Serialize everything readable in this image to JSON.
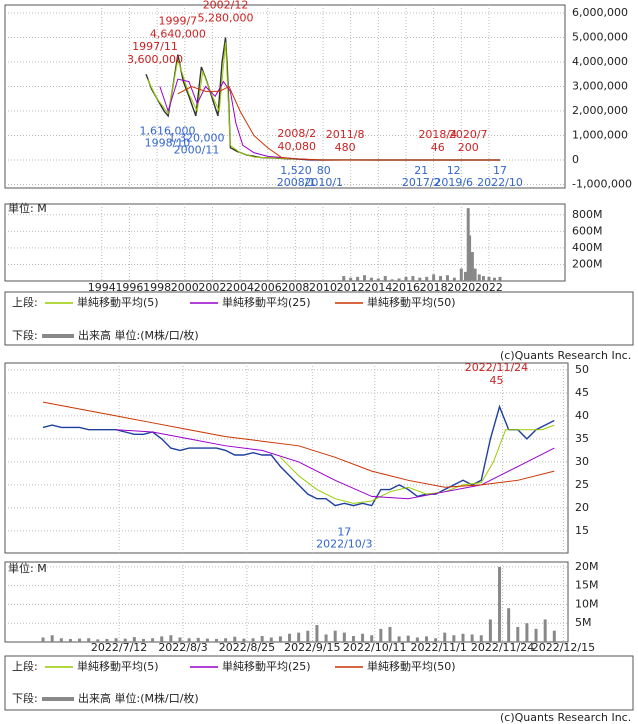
{
  "chart_data": [
    {
      "type": "line",
      "legend_upper": "上段:",
      "xlim": [
        1987,
        2027.5
      ],
      "ylim": [
        -1143000,
        6327000
      ],
      "yticks": [
        {
          "value": 6000000,
          "label": "6,000,000"
        },
        {
          "value": 5000000,
          "label": "5,000,000"
        },
        {
          "value": 4000000,
          "label": "4,000,000"
        },
        {
          "value": 3000000,
          "label": "3,000,000"
        },
        {
          "value": 2000000,
          "label": "2,000,000"
        },
        {
          "value": 1000000,
          "label": "1,000,000"
        },
        0,
        {
          "value": -1000000,
          "label": "-1,000,000"
        }
      ],
      "grid": true,
      "series": [
        {
          "color": "#333333",
          "x": [
            1997.2,
            1997.6,
            1998.0,
            1998.5,
            1998.8,
            1999.2,
            1999.5,
            1999.9,
            2000.3,
            2000.8,
            2001.2,
            2001.6,
            2002.0,
            2002.4,
            2002.7,
            2002.95,
            2003.1,
            2003.3,
            2003.8,
            2004.5,
            2005.5,
            2006.5,
            2007.5,
            2008.2,
            2009.0,
            2010.0,
            2011.6,
            2014.0,
            2018.3,
            2020.6,
            2022.8
          ],
          "values": [
            3500000,
            2900000,
            2500000,
            2000000,
            1800000,
            3200000,
            4300000,
            3200000,
            2600000,
            1800000,
            3800000,
            3200000,
            2500000,
            1800000,
            4000000,
            5000000,
            3500000,
            500000,
            350000,
            200000,
            100000,
            80000,
            50000,
            40000,
            5000,
            200,
            480,
            100,
            46,
            200,
            17
          ]
        },
        {
          "name": "単純移動平均(5)",
          "color": "#99cc00",
          "x": [
            1997.3,
            1998.0,
            1998.8,
            1999.5,
            2000.3,
            2000.9,
            2001.3,
            2002.0,
            2002.5,
            2002.95,
            2003.3,
            2004.0,
            2005.0,
            2006.5,
            2008.0
          ],
          "values": [
            3300000,
            2500000,
            1900000,
            4100000,
            2700000,
            2000000,
            3600000,
            2600000,
            2000000,
            4800000,
            600000,
            300000,
            120000,
            80000,
            40000
          ]
        },
        {
          "name": "単純移動平均(25)",
          "color": "#9900cc",
          "x": [
            1998.2,
            1998.8,
            1999.5,
            2000.3,
            2000.9,
            2001.5,
            2002.2,
            2002.8,
            2003.3,
            2003.7,
            2004.2,
            2005.0,
            2006.0,
            2007.0,
            2008.0,
            2009.5
          ],
          "values": [
            3000000,
            2000000,
            3300000,
            3200000,
            2300000,
            3000000,
            2600000,
            3200000,
            2800000,
            1500000,
            600000,
            300000,
            150000,
            100000,
            50000,
            0
          ]
        },
        {
          "name": "単純移動平均(50)",
          "color": "#cc3300",
          "x": [
            1999.5,
            2000.5,
            2001.5,
            2002.5,
            2003.2,
            2004.0,
            2005.0,
            2006.0,
            2007.0,
            2008.0,
            2010.0,
            2022.8
          ],
          "values": [
            2700000,
            3000000,
            2800000,
            2800000,
            3000000,
            2000000,
            1000000,
            500000,
            100000,
            50000,
            1000,
            20
          ]
        }
      ],
      "annotation_colors": {
        "high": "#cc2222",
        "low": "#3366cc"
      },
      "annotations": [
        {
          "kind": "high",
          "date": "1997/11",
          "x": 1997.85,
          "value": 3600000,
          "value_label": "3,600,000"
        },
        {
          "kind": "high",
          "date": "1999/7",
          "x": 1999.5,
          "value": 4640000,
          "value_label": "4,640,000"
        },
        {
          "kind": "high",
          "date": "2002/12",
          "x": 2002.95,
          "value": 5280000,
          "value_label": "5,280,000"
        },
        {
          "kind": "low",
          "date": "1998/10",
          "x": 1998.75,
          "value": 1616000,
          "value_label": "1,616,000"
        },
        {
          "kind": "low",
          "date": "2000/11",
          "x": 2000.85,
          "value": 1320000,
          "value_label": "1,320,000"
        },
        {
          "kind": "high",
          "date": "2008/2",
          "x": 2008.1,
          "value": 40080,
          "value_label": "40,080"
        },
        {
          "kind": "low",
          "date": "2008/1",
          "x": 2008.05,
          "value": 1520,
          "value_label": "1,520"
        },
        {
          "kind": "low",
          "date": "2010/1",
          "x": 2010.05,
          "value": 80
        },
        {
          "kind": "high",
          "date": "2011/8",
          "x": 2011.6,
          "value": 480
        },
        {
          "kind": "low",
          "date": "2017/2",
          "x": 2017.1,
          "value": 21
        },
        {
          "kind": "high",
          "date": "2018/4",
          "x": 2018.3,
          "value": 46
        },
        {
          "kind": "low",
          "date": "2019/6",
          "x": 2019.45,
          "value": 12
        },
        {
          "kind": "high",
          "date": "2020/7",
          "x": 2020.5,
          "value": 200
        },
        {
          "kind": "low",
          "date": "2022/10",
          "x": 2022.8,
          "value": 17
        }
      ]
    },
    {
      "type": "bar",
      "unit_label": "単位: M",
      "legend_lower": "下段:",
      "legend_label": "出来高 単位:(M株/口/枚)",
      "note": "(c)Quants Research Inc.",
      "color": "#888888",
      "xlim": [
        1987,
        2027.5
      ],
      "xticks": [
        1994,
        1996,
        1998,
        2000,
        2002,
        2004,
        2006,
        2008,
        2010,
        2012,
        2014,
        2016,
        2018,
        2020,
        2022
      ],
      "ylim": [
        0,
        930
      ],
      "yticks": [
        {
          "value": 800,
          "label": "800M"
        },
        {
          "value": 600,
          "label": "600M"
        },
        {
          "value": 400,
          "label": "400M"
        },
        {
          "value": 200,
          "label": "200M"
        }
      ],
      "grid": true,
      "x": [
        2011.5,
        2012,
        2012.5,
        2013,
        2013.5,
        2014,
        2014.5,
        2015,
        2015.5,
        2016,
        2016.5,
        2017,
        2017.5,
        2018,
        2018.5,
        2019,
        2019.5,
        2020,
        2020.3,
        2020.5,
        2020.6,
        2020.8,
        2021,
        2021.3,
        2021.6,
        2022,
        2022.4,
        2022.8
      ],
      "values": [
        60,
        40,
        50,
        70,
        40,
        30,
        60,
        20,
        30,
        50,
        60,
        40,
        50,
        80,
        60,
        70,
        40,
        150,
        110,
        880,
        550,
        350,
        150,
        80,
        60,
        50,
        40,
        50
      ]
    },
    {
      "type": "line",
      "legend_upper": "上段:",
      "xlim": [
        -12.5,
        172.5
      ],
      "ylim": [
        10.2,
        51.5
      ],
      "yticks": [
        50,
        45,
        40,
        35,
        30,
        25,
        20,
        15
      ],
      "grid": true,
      "series": [
        {
          "color": "#1f3f9f",
          "x": [
            0,
            3,
            6,
            9,
            12,
            15,
            18,
            21,
            24,
            27,
            30,
            33,
            36,
            39,
            42,
            45,
            48,
            51,
            54,
            57,
            60,
            63,
            66,
            69,
            72,
            75,
            78,
            81,
            84,
            87,
            90,
            93,
            96,
            99,
            102,
            105,
            108,
            111,
            114,
            117,
            120,
            123,
            126,
            129,
            132,
            135,
            138,
            141,
            144,
            147,
            150,
            153,
            156,
            159,
            162,
            165,
            168
          ],
          "values": [
            37.5,
            38,
            37.5,
            37.5,
            37.5,
            37,
            37,
            37,
            37,
            36.5,
            36,
            36,
            36.5,
            35,
            33,
            32.5,
            33,
            33,
            33,
            33,
            32.5,
            31.5,
            31.5,
            32,
            31.5,
            31.5,
            29,
            27,
            25,
            23,
            22,
            22,
            20.5,
            21,
            20.5,
            21,
            20.5,
            24,
            24,
            25,
            24,
            22.5,
            23,
            23,
            24,
            25,
            26,
            25,
            26,
            35,
            42,
            37,
            37,
            35,
            37,
            38,
            39
          ]
        },
        {
          "name": "単純移動平均(5)",
          "color": "#99cc00",
          "x": [
            78,
            84,
            90,
            96,
            102,
            108,
            114,
            120,
            126,
            132,
            138,
            144,
            148,
            152,
            158,
            164,
            168
          ],
          "values": [
            31,
            27,
            24,
            22,
            21,
            21.5,
            23.5,
            24.5,
            23,
            23.5,
            25,
            25.5,
            30,
            37,
            37,
            37,
            38
          ]
        },
        {
          "name": "単純移動平均(25)",
          "color": "#9900cc",
          "x": [
            24,
            36,
            48,
            60,
            72,
            84,
            96,
            108,
            120,
            132,
            144,
            156,
            168
          ],
          "values": [
            37,
            36.5,
            35,
            33.5,
            32.5,
            30,
            26,
            22.5,
            22,
            23.5,
            25,
            29,
            33
          ]
        },
        {
          "name": "単純移動平均(50)",
          "color": "#cc3300",
          "x": [
            0,
            12,
            24,
            36,
            48,
            60,
            72,
            84,
            96,
            108,
            120,
            132,
            144,
            156,
            168
          ],
          "values": [
            43,
            41.5,
            40,
            38.5,
            37,
            35.5,
            34.5,
            33.5,
            31,
            28,
            26,
            24.5,
            25,
            26,
            28
          ]
        }
      ],
      "annotation_colors": {
        "high": "#cc2222",
        "low": "#3366cc"
      },
      "annotations": [
        {
          "kind": "high",
          "date": "2022/11/24",
          "x": 149,
          "value": 45
        },
        {
          "kind": "low",
          "date": "2022/10/3",
          "x": 99,
          "value": 17
        }
      ]
    },
    {
      "type": "bar",
      "unit_label": "単位: M",
      "legend_lower": "下段:",
      "legend_label": "出来高 単位:(M株/口/枚)",
      "note": "(c)Quants Research Inc.",
      "color": "#888888",
      "xlim": [
        -12.5,
        172.5
      ],
      "xticks": [
        {
          "value": 25,
          "label": "2022/7/12"
        },
        {
          "value": 46,
          "label": "2022/8/3"
        },
        {
          "value": 67,
          "label": "2022/8/25"
        },
        {
          "value": 88.5,
          "label": "2022/9/15"
        },
        {
          "value": 109,
          "label": "2022/10/11"
        },
        {
          "value": 130,
          "label": "2022/11/1"
        },
        {
          "value": 151,
          "label": "2022/11/24"
        },
        {
          "value": 171,
          "label": "2022/12/15"
        }
      ],
      "ylim": [
        0,
        21.3
      ],
      "yticks": [
        {
          "value": 20,
          "label": "20M"
        },
        {
          "value": 15,
          "label": "15M"
        },
        {
          "value": 10,
          "label": "10M"
        },
        {
          "value": 5,
          "label": "5M"
        }
      ],
      "grid": true,
      "x": [
        0,
        3,
        6,
        9,
        12,
        15,
        18,
        21,
        24,
        27,
        30,
        33,
        36,
        39,
        42,
        45,
        48,
        51,
        54,
        57,
        60,
        63,
        66,
        69,
        72,
        75,
        78,
        81,
        84,
        87,
        90,
        93,
        96,
        99,
        102,
        105,
        108,
        111,
        114,
        117,
        120,
        123,
        126,
        129,
        132,
        135,
        138,
        141,
        144,
        147,
        150,
        153,
        156,
        159,
        162,
        165,
        168
      ],
      "values": [
        1.2,
        1.8,
        1.0,
        0.8,
        0.9,
        1.0,
        0.7,
        0.8,
        1.0,
        0.9,
        1.3,
        0.8,
        1.0,
        1.5,
        1.8,
        1.2,
        1.0,
        1.1,
        0.9,
        0.8,
        1.0,
        1.4,
        0.9,
        1.0,
        1.6,
        1.2,
        1.5,
        2.2,
        2.5,
        3.0,
        4.5,
        2.0,
        3.0,
        2.5,
        1.6,
        2.2,
        1.8,
        3.5,
        4.0,
        1.5,
        1.7,
        1.2,
        1.5,
        1.0,
        2.5,
        1.8,
        2.2,
        2.0,
        1.8,
        6.0,
        20.0,
        9.0,
        4.0,
        5.0,
        3.5,
        6.0,
        3.0
      ]
    }
  ]
}
